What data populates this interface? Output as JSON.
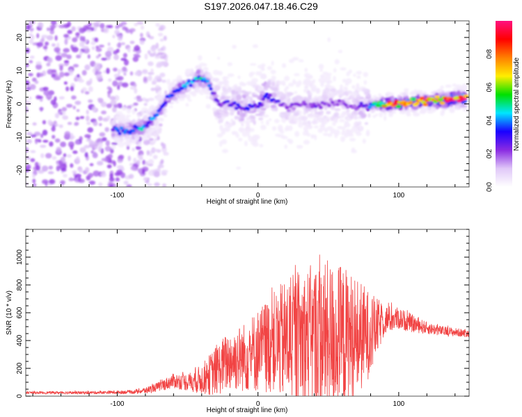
{
  "title": "S197.2026.047.18.46.C29",
  "chart_data": [
    {
      "type": "heatmap",
      "name": "spectrogram",
      "title": "S197.2026.047.18.46.C29",
      "xlabel": "Height of straight line (km)",
      "ylabel": "Frequency (Hz)",
      "xlim": [
        -165,
        150
      ],
      "ylim": [
        -25,
        25
      ],
      "xticks": [
        -100,
        0,
        100
      ],
      "xtick_labels": [
        "-100",
        "0",
        "100"
      ],
      "yticks": [
        -20,
        -10,
        0,
        10,
        20
      ],
      "ytick_labels": [
        "-20",
        "-10",
        "0",
        "10",
        "20"
      ],
      "colorbar": {
        "label": "Normalized spectral amplitude",
        "range": [
          0,
          1
        ],
        "ticks": [
          0.0,
          0.2,
          0.4,
          0.6,
          0.8
        ],
        "tick_labels": [
          "0.0",
          "0.2",
          "0.4",
          "0.6",
          "0.8"
        ],
        "colormap": [
          "#ffffff",
          "#e0c8f8",
          "#8a2be2",
          "#1a00ff",
          "#00e5ff",
          "#00e000",
          "#ffee00",
          "#ff8000",
          "#ff0000",
          "#ff1080"
        ]
      },
      "ridge": {
        "description": "dominant frequency track",
        "x": [
          -103,
          -90,
          -80,
          -72,
          -65,
          -58,
          -50,
          -42,
          -36,
          -32,
          -28,
          -20,
          -10,
          0,
          6,
          12,
          20,
          30,
          40,
          50,
          60,
          70,
          78,
          85,
          95,
          110,
          125,
          140,
          148
        ],
        "y": [
          -8,
          -8,
          -7,
          -3,
          1,
          4,
          6,
          8,
          7,
          3,
          0,
          0,
          -1,
          -1,
          3,
          1,
          -1,
          0,
          -1,
          0,
          0,
          -1,
          -1,
          0,
          0,
          0.5,
          1,
          1.5,
          1.5
        ],
        "amplitude": [
          0.35,
          0.4,
          0.4,
          0.35,
          0.35,
          0.38,
          0.42,
          0.45,
          0.4,
          0.3,
          0.25,
          0.28,
          0.3,
          0.28,
          0.35,
          0.25,
          0.2,
          0.2,
          0.22,
          0.2,
          0.2,
          0.2,
          0.3,
          0.5,
          0.85,
          0.7,
          0.8,
          0.9,
          0.95
        ]
      },
      "noise_region": {
        "x_range": [
          -165,
          -80
        ],
        "amplitude_max": 0.15
      }
    },
    {
      "type": "line",
      "name": "snr-trace",
      "xlabel": "Height of straight line (km)",
      "ylabel": "SNR (10 * v/v)",
      "xlim": [
        -165,
        150
      ],
      "ylim": [
        0,
        1200
      ],
      "xticks": [
        -100,
        0,
        100
      ],
      "xtick_labels": [
        "-100",
        "0",
        "100"
      ],
      "yticks": [
        0,
        200,
        400,
        600,
        800,
        1000
      ],
      "ytick_labels": [
        "0",
        "200",
        "400",
        "600",
        "800",
        "1000"
      ],
      "color": "#f03030",
      "envelope": {
        "x": [
          -165,
          -120,
          -90,
          -80,
          -70,
          -60,
          -50,
          -40,
          -30,
          -20,
          -10,
          0,
          10,
          20,
          30,
          40,
          50,
          60,
          70,
          80,
          90,
          100,
          110,
          120,
          130,
          140,
          150
        ],
        "mean": [
          25,
          25,
          30,
          40,
          70,
          110,
          100,
          120,
          180,
          260,
          280,
          330,
          380,
          400,
          420,
          420,
          420,
          410,
          420,
          450,
          550,
          560,
          520,
          490,
          470,
          460,
          450
        ],
        "spread": [
          10,
          12,
          15,
          25,
          40,
          60,
          70,
          120,
          200,
          250,
          280,
          340,
          400,
          500,
          550,
          600,
          620,
          600,
          500,
          330,
          120,
          90,
          70,
          50,
          40,
          35,
          30
        ]
      }
    }
  ]
}
